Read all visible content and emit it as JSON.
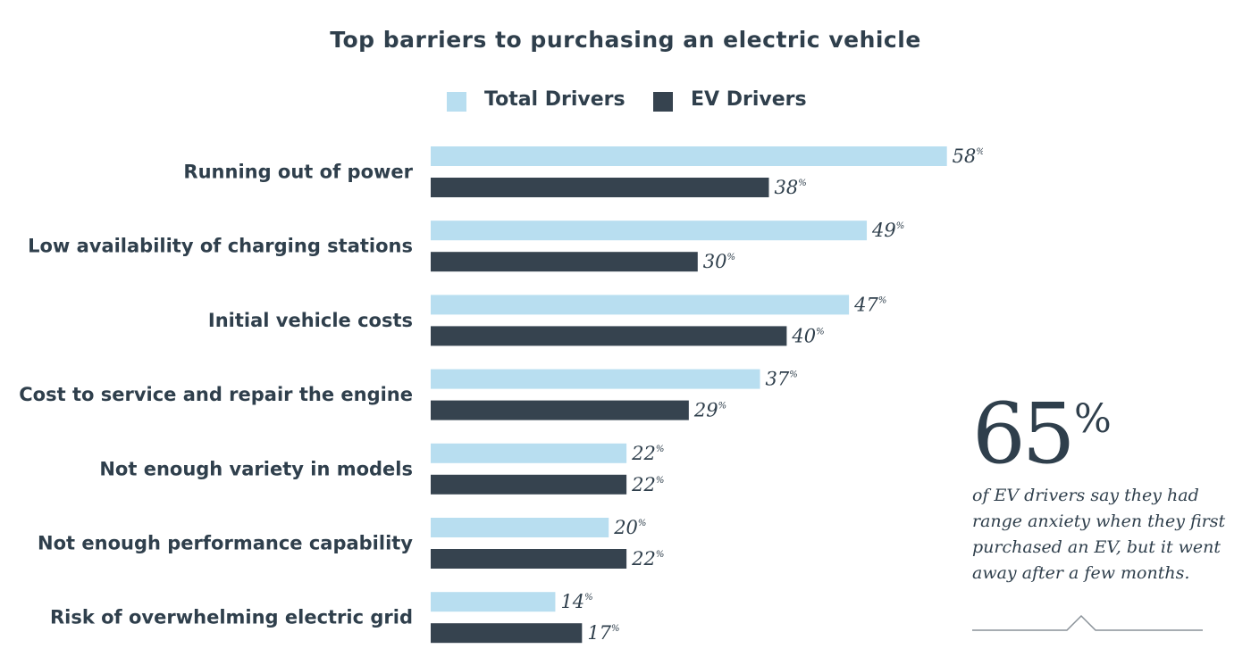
{
  "chart_data": {
    "type": "bar",
    "orientation": "horizontal",
    "title": "Top barriers to purchasing an electric vehicle",
    "categories": [
      "Running out of power",
      "Low availability of charging stations",
      "Initial vehicle costs",
      "Cost to service and repair the engine",
      "Not enough variety in models",
      "Not enough performance capability",
      "Risk of overwhelming electric grid"
    ],
    "series": [
      {
        "name": "Total Drivers",
        "color": "#b8def0",
        "values": [
          58,
          49,
          47,
          37,
          22,
          20,
          14
        ]
      },
      {
        "name": "EV Drivers",
        "color": "#36434f",
        "values": [
          38,
          30,
          40,
          29,
          22,
          22,
          17
        ]
      }
    ],
    "value_suffix": "%",
    "xlim": [
      0,
      60
    ],
    "grid": false,
    "legend_position": "top-center"
  },
  "callout": {
    "number": "65",
    "percent_sign": "%",
    "text": "of EV drivers say they had range anxiety when they first purchased an EV, but it went away after a few months."
  }
}
